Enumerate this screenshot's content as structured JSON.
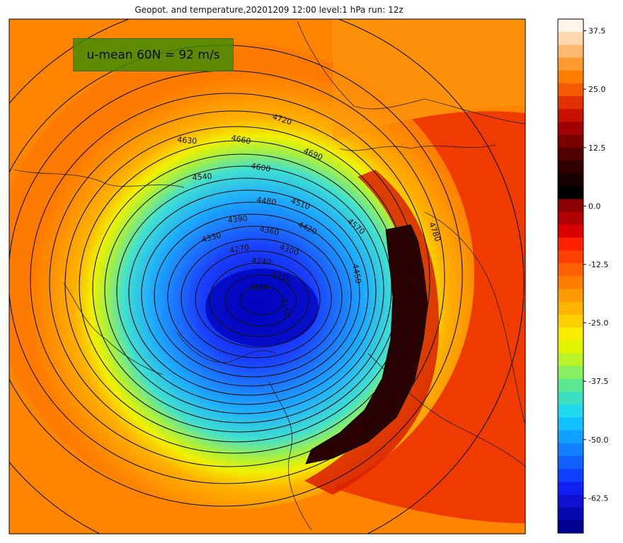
{
  "title": "Geopot. and temperature,20201209 12:00 level:1 hPa run: 12z",
  "annotation": {
    "text": "u-mean 60N = 92 m/s"
  },
  "contour_labels": [
    "4720",
    "4690",
    "4660",
    "4630",
    "4600",
    "4570",
    "4540",
    "4510",
    "4480",
    "4450",
    "4420",
    "4390",
    "4360",
    "4330",
    "4300",
    "4270",
    "4240",
    "4210",
    "4180",
    "4150",
    "4780"
  ],
  "colorbar": {
    "min": -70,
    "max": 40,
    "tick_labels": [
      "37.5",
      "25.0",
      "12.5",
      "0.0",
      "-12.5",
      "-25.0",
      "-37.5",
      "-50.0",
      "-62.5"
    ],
    "tick_values": [
      37.5,
      25.0,
      12.5,
      0.0,
      -12.5,
      -25.0,
      -37.5,
      -50.0,
      -62.5
    ]
  },
  "colors": {
    "coldest": "#00008b",
    "cold": "#0a3dff",
    "cool": "#1fb8ff",
    "mid": "#70e070",
    "yellow": "#f4f400",
    "orange": "#ff8c00",
    "red": "#e02000",
    "dark": "#1a0000",
    "warm_top": "#fff0e0"
  }
}
